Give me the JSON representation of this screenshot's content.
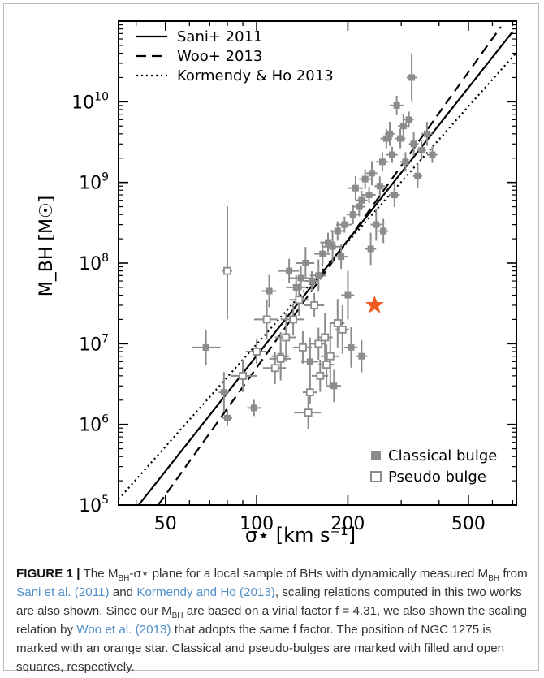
{
  "chart_data": {
    "type": "scatter",
    "xlabel": "σ⋆ [km s⁻¹]",
    "ylabel": "M_BH [M☉]",
    "x_scale": "log",
    "y_scale": "log",
    "xlim": [
      35,
      720
    ],
    "ylim": [
      100000,
      100000000000
    ],
    "x_ticks": [
      {
        "value": 50,
        "label": "50"
      },
      {
        "value": 100,
        "label": "100"
      },
      {
        "value": 200,
        "label": "200"
      },
      {
        "value": 500,
        "label": "500"
      }
    ],
    "y_ticks": [
      {
        "value": 100000,
        "mant": "10",
        "exp": "5"
      },
      {
        "value": 1000000,
        "mant": "10",
        "exp": "6"
      },
      {
        "value": 10000000,
        "mant": "10",
        "exp": "7"
      },
      {
        "value": 100000000,
        "mant": "10",
        "exp": "8"
      },
      {
        "value": 1000000000,
        "mant": "10",
        "exp": "9"
      },
      {
        "value": 10000000000,
        "mant": "10",
        "exp": "10"
      }
    ],
    "lines": [
      {
        "name": "Sani+ 2011",
        "style": "solid",
        "points": [
          [
            40.0,
            91200
          ],
          [
            700.0,
            74100000000
          ]
        ]
      },
      {
        "name": "Woo+ 2013",
        "style": "dashed",
        "points": [
          [
            47.3,
            100000
          ],
          [
            640.0,
            85100000000
          ]
        ]
      },
      {
        "name": "Kormendy & Ho 2013",
        "style": "dotted",
        "points": [
          [
            35.0,
            118000
          ],
          [
            720.0,
            40700000000
          ]
        ]
      }
    ],
    "series": [
      {
        "name": "Classical bulge",
        "marker": "filled-square",
        "points": [
          [
            68,
            9000000,
            7,
            8,
            0.22,
            0.22
          ],
          [
            78,
            2500000,
            3,
            3,
            0.25,
            0.25
          ],
          [
            80,
            1200000,
            3,
            3,
            0.1,
            0.1
          ],
          [
            98,
            1600000,
            5,
            5,
            0.1,
            0.1
          ],
          [
            110,
            45000000,
            6,
            6,
            0.2,
            0.2
          ],
          [
            120,
            7000000,
            8,
            8,
            0.3,
            0.3
          ],
          [
            128,
            80000000,
            10,
            10,
            0.15,
            0.15
          ],
          [
            135,
            50000000,
            10,
            10,
            0.15,
            0.15
          ],
          [
            140,
            65000000,
            12,
            12,
            0.15,
            0.15
          ],
          [
            145,
            100000000,
            10,
            10,
            0.2,
            0.2
          ],
          [
            150,
            6000000,
            10,
            10,
            0.3,
            0.3
          ],
          [
            152,
            60000000,
            8,
            8,
            0.12,
            0.12
          ],
          [
            160,
            70000000,
            10,
            10,
            0.2,
            0.2
          ],
          [
            165,
            130000000,
            10,
            10,
            0.15,
            0.15
          ],
          [
            172,
            180000000,
            10,
            10,
            0.12,
            0.12
          ],
          [
            178,
            160000000,
            12,
            12,
            0.2,
            0.2
          ],
          [
            185,
            250000000,
            10,
            10,
            0.12,
            0.12
          ],
          [
            190,
            120000000,
            10,
            10,
            0.15,
            0.15
          ],
          [
            195,
            300000000,
            12,
            12,
            0.1,
            0.1
          ],
          [
            200,
            40000000,
            10,
            10,
            0.3,
            0.3
          ],
          [
            208,
            400000000,
            10,
            10,
            0.12,
            0.12
          ],
          [
            212,
            850000000,
            12,
            12,
            0.15,
            0.15
          ],
          [
            218,
            500000000,
            10,
            10,
            0.12,
            0.12
          ],
          [
            222,
            600000000,
            10,
            10,
            0.12,
            0.12
          ],
          [
            228,
            1100000000,
            10,
            10,
            0.12,
            0.12
          ],
          [
            235,
            700000000,
            12,
            12,
            0.1,
            0.1
          ],
          [
            240,
            1300000000,
            10,
            10,
            0.15,
            0.15
          ],
          [
            248,
            300000000,
            10,
            10,
            0.2,
            0.2
          ],
          [
            255,
            900000000,
            10,
            10,
            0.12,
            0.12
          ],
          [
            260,
            1800000000,
            12,
            12,
            0.12,
            0.12
          ],
          [
            268,
            3500000000,
            12,
            12,
            0.12,
            0.12
          ],
          [
            275,
            4000000000,
            10,
            10,
            0.15,
            0.15
          ],
          [
            280,
            2200000000,
            12,
            12,
            0.1,
            0.1
          ],
          [
            285,
            700000000,
            12,
            12,
            0.15,
            0.15
          ],
          [
            290,
            9000000000,
            15,
            15,
            0.12,
            0.12
          ],
          [
            298,
            3500000000,
            12,
            12,
            0.12,
            0.12
          ],
          [
            305,
            5000000000,
            12,
            12,
            0.15,
            0.15
          ],
          [
            310,
            1800000000,
            12,
            12,
            0.12,
            0.12
          ],
          [
            318,
            6000000000,
            12,
            12,
            0.1,
            0.1
          ],
          [
            325,
            20000000000,
            12,
            12,
            0.3,
            0.3
          ],
          [
            330,
            3000000000,
            12,
            12,
            0.15,
            0.15
          ],
          [
            340,
            1200000000,
            12,
            12,
            0.15,
            0.15
          ],
          [
            350,
            2500000000,
            12,
            12,
            0.12,
            0.12
          ],
          [
            365,
            4000000000,
            15,
            15,
            0.15,
            0.15
          ],
          [
            380,
            2200000000,
            15,
            15,
            0.1,
            0.1
          ],
          [
            180,
            3000000,
            10,
            10,
            0.2,
            0.2
          ],
          [
            205,
            9000000,
            10,
            10,
            0.25,
            0.25
          ],
          [
            222,
            7000000,
            10,
            10,
            0.2,
            0.2
          ],
          [
            238,
            150000000,
            10,
            10,
            0.2,
            0.2
          ],
          [
            262,
            250000000,
            10,
            10,
            0.15,
            0.15
          ]
        ]
      },
      {
        "name": "Pseudo bulge",
        "marker": "open-square",
        "points": [
          [
            80,
            80000000,
            3,
            3,
            0.6,
            0.8
          ],
          [
            90,
            4000000,
            8,
            10,
            0.2,
            0.2
          ],
          [
            100,
            8000000,
            8,
            8,
            0.15,
            0.15
          ],
          [
            108,
            20000000,
            10,
            10,
            0.25,
            0.25
          ],
          [
            115,
            5000000,
            10,
            10,
            0.2,
            0.2
          ],
          [
            125,
            12000000,
            10,
            10,
            0.3,
            0.3
          ],
          [
            132,
            20000000,
            12,
            12,
            0.2,
            0.2
          ],
          [
            138,
            35000000,
            10,
            10,
            0.2,
            0.2
          ],
          [
            142,
            9000000,
            10,
            10,
            0.2,
            0.2
          ],
          [
            148,
            1400000,
            15,
            15,
            0.2,
            0.2
          ],
          [
            155,
            30000000,
            12,
            12,
            0.15,
            0.15
          ],
          [
            160,
            10000000,
            10,
            10,
            0.2,
            0.2
          ],
          [
            162,
            4000000,
            10,
            10,
            0.2,
            0.2
          ],
          [
            168,
            12000000,
            10,
            10,
            0.3,
            0.3
          ],
          [
            175,
            7000000,
            12,
            12,
            0.4,
            0.4
          ],
          [
            185,
            18000000,
            10,
            10,
            0.3,
            0.3
          ],
          [
            192,
            15000000,
            10,
            10,
            0.3,
            0.3
          ],
          [
            150,
            2500000,
            8,
            8,
            0.15,
            0.15
          ],
          [
            170,
            5500000,
            10,
            10,
            0.25,
            0.25
          ],
          [
            120,
            6500000,
            10,
            10,
            0.2,
            0.2
          ]
        ]
      }
    ],
    "highlight": {
      "label": "NGC 1275",
      "marker": "star",
      "x": 245,
      "y": 30000000,
      "color": "#f25a1e"
    },
    "legend": {
      "position": "top-left",
      "entries": [
        {
          "label": "Sani+ 2011",
          "style": "solid"
        },
        {
          "label": "Woo+ 2013",
          "style": "dashed"
        },
        {
          "label": "Kormendy & Ho 2013",
          "style": "dotted"
        }
      ]
    },
    "marker_legend": {
      "position": "bottom-right",
      "entries": [
        {
          "label": "Classical bulge",
          "marker": "filled-square"
        },
        {
          "label": "Pseudo bulge",
          "marker": "open-square"
        }
      ]
    },
    "colors": {
      "points": "#8c8c8c",
      "lines": "#000000",
      "star": "#f25a1e"
    }
  },
  "caption": {
    "label": "FIGURE 1 |",
    "s1": " The M",
    "sub1": "BH",
    "s2": "-σ⋆ plane for a local sample of BHs with dynamically measured M",
    "sub2": "BH",
    "s3": " from ",
    "ref1": "Sani et al. (2011)",
    "s4": " and ",
    "ref2": "Kormendy and Ho (2013)",
    "s5": ", scaling relations computed in this two works are also shown. Since our M",
    "sub3": "BH",
    "s6": " are based on a virial factor f = 4.31, we also shown the scaling relation by ",
    "ref3": "Woo et al. (2013)",
    "s7": " that adopts the same f factor. The position of NGC 1275 is marked with an orange star. Classical and pseudo-bulges are marked with filled and open squares, respectively."
  }
}
